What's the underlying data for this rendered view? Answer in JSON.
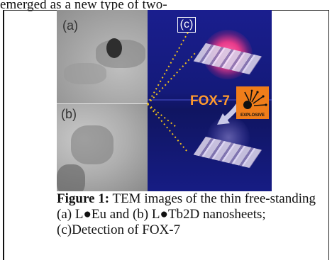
{
  "top_text": "emerged as a new type of two-",
  "figure": {
    "panel_a_label": "(a)",
    "panel_b_label": "(b)",
    "panel_c_label": "(c)",
    "fox7_label": "FOX-7",
    "explosive_label": "EXPLOSIVE"
  },
  "caption": {
    "label": "Figure 1:",
    "line1": " TEM images of the thin free-standing",
    "line2": "(a) L●Eu and (b) L●Tb2D nanosheets;",
    "line3": "(c)Detection of FOX-7"
  },
  "colors": {
    "panel_c_background": "#141a7a",
    "glow": "#e83a8a",
    "fox7_text": "#ff9a2e",
    "explosive_sign": "#f07d1a",
    "dotted_connector": "#f2c21b"
  }
}
